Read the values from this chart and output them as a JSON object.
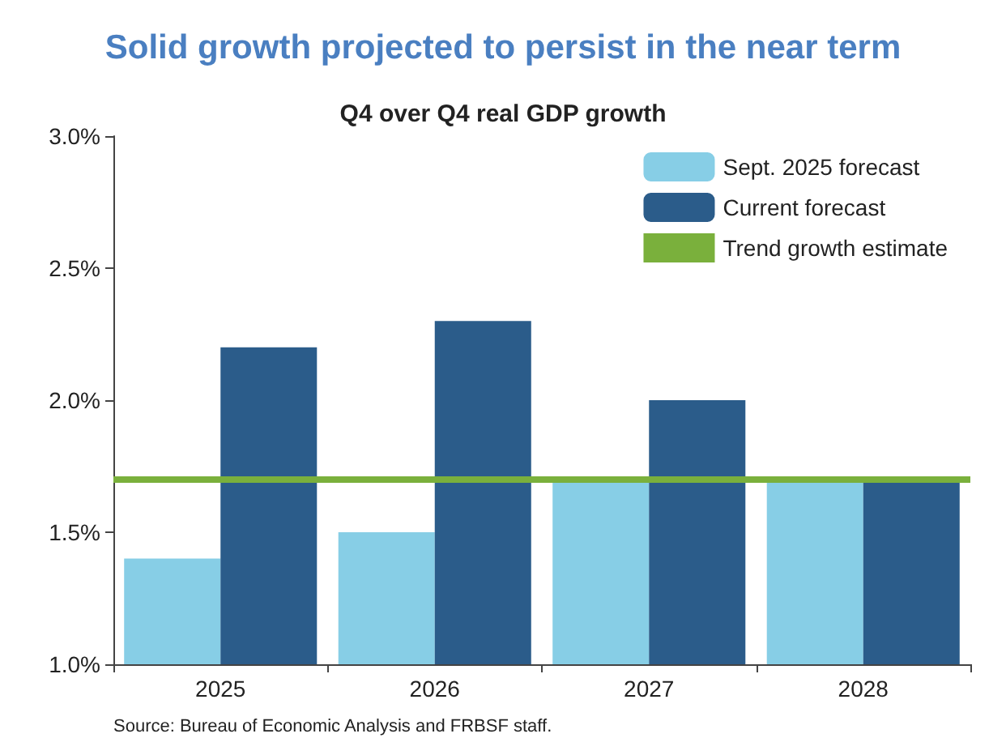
{
  "chart_data": {
    "type": "bar",
    "title": "Solid growth projected to persist in the near term",
    "subtitle": "Q4 over Q4 real GDP growth",
    "categories": [
      "2025",
      "2026",
      "2027",
      "2028"
    ],
    "series": [
      {
        "name": "Sept. 2025 forecast",
        "color": "#87cee6",
        "values": [
          1.4,
          1.5,
          1.7,
          1.7
        ]
      },
      {
        "name": "Current forecast",
        "color": "#2b5c8a",
        "values": [
          2.2,
          2.3,
          2.0,
          1.7
        ]
      }
    ],
    "ylim": [
      1.0,
      3.0
    ],
    "yticks": [
      {
        "value": 1.0,
        "label": "1.0%"
      },
      {
        "value": 1.5,
        "label": "1.5%"
      },
      {
        "value": 2.0,
        "label": "2.0%"
      },
      {
        "value": 2.5,
        "label": "2.5%"
      },
      {
        "value": 3.0,
        "label": "3.0%"
      }
    ],
    "ref_lines": [
      {
        "axis": "y",
        "value": 1.7,
        "label": "Trend growth estimate",
        "color": "#7ab03c"
      }
    ],
    "legend": "top right",
    "grid": false,
    "annotations": [
      "Source: Bureau of Economic Analysis and FRBSF staff."
    ]
  }
}
